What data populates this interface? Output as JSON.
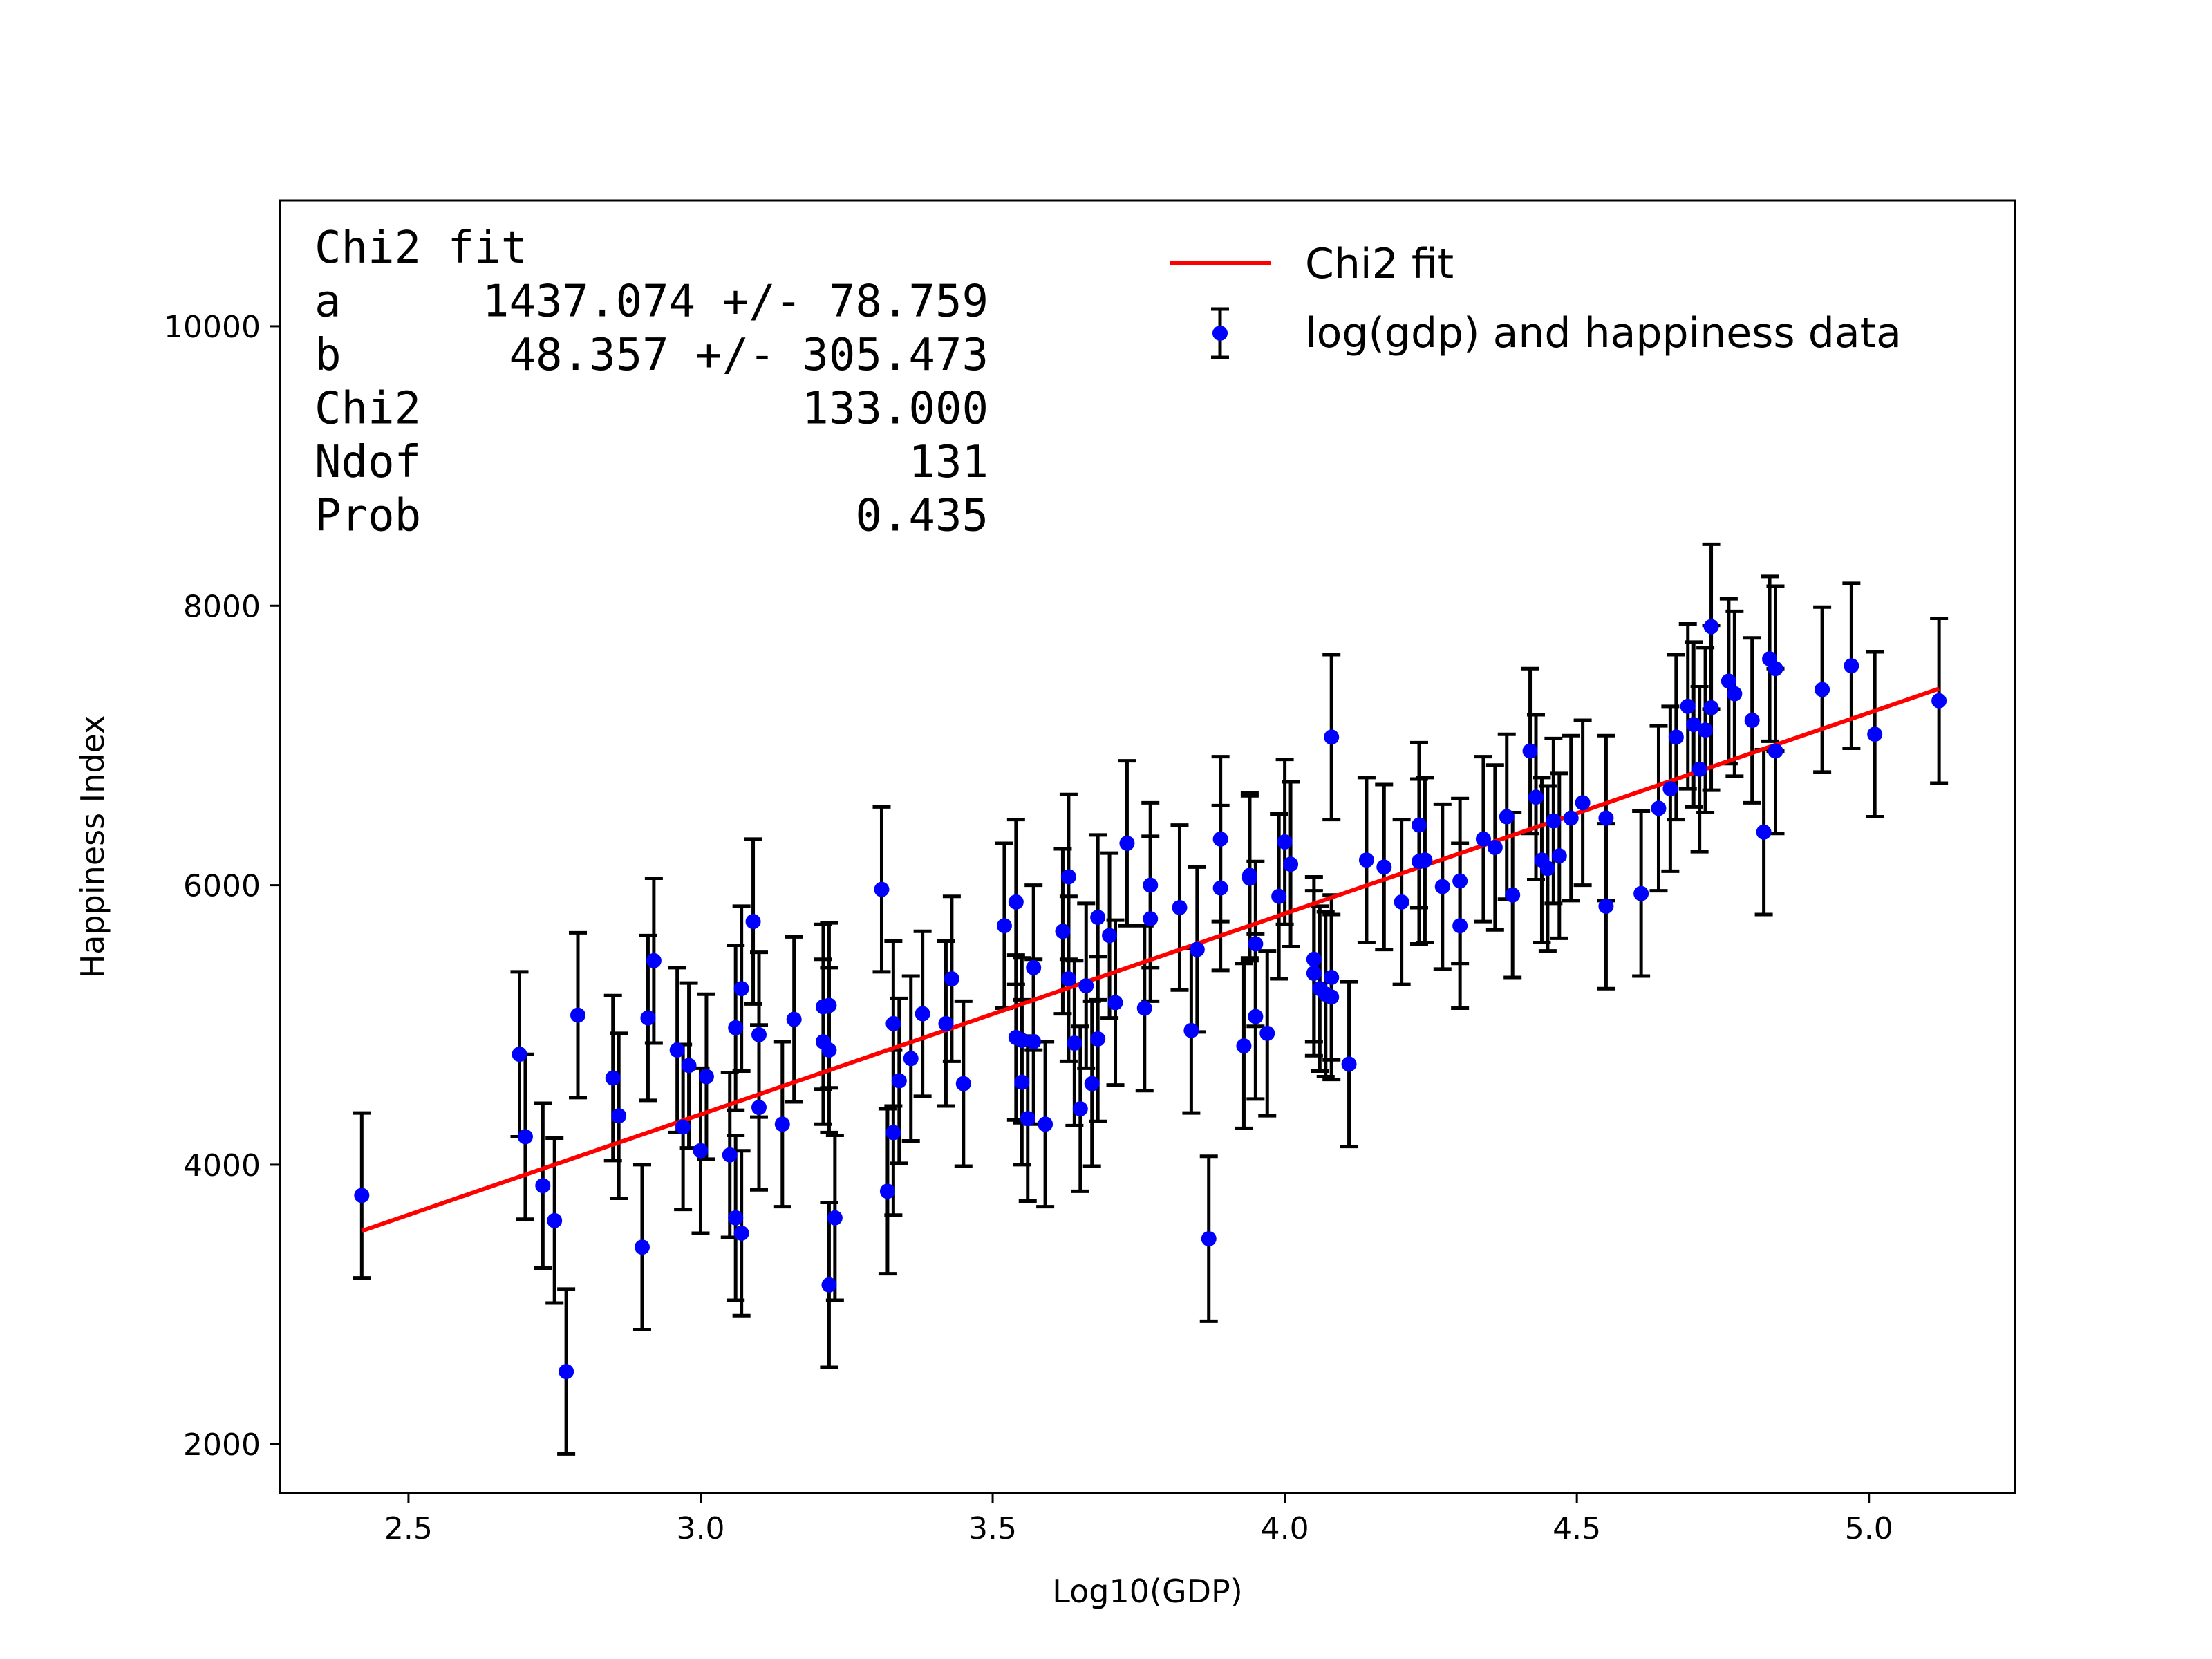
{
  "chart_data": {
    "type": "scatter",
    "title": "",
    "xlabel": "Log10(GDP)",
    "ylabel": "Happiness Index",
    "xlim": [
      2.28,
      5.25
    ],
    "ylim": [
      1650,
      10900
    ],
    "xticks": [
      2.5,
      3.0,
      3.5,
      4.0,
      4.5,
      5.0
    ],
    "xtick_labels": [
      "2.5",
      "3.0",
      "3.5",
      "4.0",
      "4.5",
      "5.0"
    ],
    "yticks": [
      2000,
      4000,
      6000,
      8000,
      10000
    ],
    "ytick_labels": [
      "2000",
      "4000",
      "6000",
      "8000",
      "10000"
    ],
    "grid": false,
    "legend_position": "top-right",
    "legend": [
      {
        "label": "Chi2 fit",
        "kind": "line",
        "color": "#ff0000"
      },
      {
        "label": "log(gdp) and happiness data",
        "kind": "errorbar-point",
        "color": "#0000ff"
      }
    ],
    "fit_box": [
      [
        "Chi2 fit",
        ""
      ],
      [
        "a",
        "1437.074 +/- 78.759"
      ],
      [
        "b",
        "48.357 +/- 305.473"
      ],
      [
        "Chi2",
        "133.000"
      ],
      [
        "Ndof",
        "131"
      ],
      [
        "Prob",
        "0.435"
      ]
    ],
    "fit_line": {
      "a": 1437.074,
      "b": 48.357,
      "x_range": [
        2.42,
        5.12
      ],
      "color": "#ff0000"
    },
    "yerr": 590,
    "series": [
      {
        "name": "log(gdp) and happiness data",
        "color": "#0000ff",
        "points": [
          [
            2.42,
            3780
          ],
          [
            2.69,
            4790
          ],
          [
            2.7,
            4200
          ],
          [
            2.73,
            3850
          ],
          [
            2.75,
            3600
          ],
          [
            2.77,
            2520
          ],
          [
            2.79,
            5070
          ],
          [
            2.85,
            4620
          ],
          [
            2.86,
            4350
          ],
          [
            2.9,
            3410
          ],
          [
            2.91,
            5050
          ],
          [
            2.92,
            5460
          ],
          [
            2.96,
            4820
          ],
          [
            2.97,
            4270
          ],
          [
            2.98,
            4710
          ],
          [
            3.0,
            4100
          ],
          [
            3.01,
            4630
          ],
          [
            3.05,
            4070
          ],
          [
            3.06,
            3620
          ],
          [
            3.06,
            4980
          ],
          [
            3.07,
            5260
          ],
          [
            3.07,
            3510
          ],
          [
            3.09,
            5740
          ],
          [
            3.1,
            4410
          ],
          [
            3.1,
            4930
          ],
          [
            3.14,
            4290
          ],
          [
            3.16,
            5040
          ],
          [
            3.21,
            5130
          ],
          [
            3.21,
            4880
          ],
          [
            3.22,
            4820
          ],
          [
            3.22,
            5140
          ],
          [
            3.22,
            3140
          ],
          [
            3.23,
            3620
          ],
          [
            3.31,
            5970
          ],
          [
            3.32,
            3810
          ],
          [
            3.33,
            5010
          ],
          [
            3.33,
            4230
          ],
          [
            3.34,
            4600
          ],
          [
            3.36,
            4760
          ],
          [
            3.38,
            5080
          ],
          [
            3.42,
            5010
          ],
          [
            3.43,
            5330
          ],
          [
            3.45,
            4580
          ],
          [
            3.52,
            5710
          ],
          [
            3.54,
            4910
          ],
          [
            3.54,
            5880
          ],
          [
            3.55,
            4590
          ],
          [
            3.55,
            4890
          ],
          [
            3.56,
            4330
          ],
          [
            3.57,
            4880
          ],
          [
            3.57,
            5410
          ],
          [
            3.59,
            4290
          ],
          [
            3.62,
            5670
          ],
          [
            3.63,
            6060
          ],
          [
            3.63,
            5330
          ],
          [
            3.64,
            4870
          ],
          [
            3.65,
            4400
          ],
          [
            3.66,
            5280
          ],
          [
            3.67,
            4580
          ],
          [
            3.68,
            5770
          ],
          [
            3.68,
            4900
          ],
          [
            3.7,
            5640
          ],
          [
            3.71,
            5160
          ],
          [
            3.73,
            6300
          ],
          [
            3.76,
            5120
          ],
          [
            3.77,
            5760
          ],
          [
            3.77,
            6000
          ],
          [
            3.82,
            5840
          ],
          [
            3.84,
            4960
          ],
          [
            3.85,
            5540
          ],
          [
            3.87,
            3470
          ],
          [
            3.89,
            6330
          ],
          [
            3.89,
            5980
          ],
          [
            3.93,
            4850
          ],
          [
            3.94,
            6050
          ],
          [
            3.94,
            6070
          ],
          [
            3.95,
            5580
          ],
          [
            3.95,
            5060
          ],
          [
            3.97,
            4940
          ],
          [
            3.99,
            5920
          ],
          [
            4.0,
            6310
          ],
          [
            4.01,
            6150
          ],
          [
            4.05,
            5370
          ],
          [
            4.05,
            5470
          ],
          [
            4.06,
            5260
          ],
          [
            4.07,
            5220
          ],
          [
            4.08,
            7060
          ],
          [
            4.08,
            5340
          ],
          [
            4.08,
            5200
          ],
          [
            4.11,
            4720
          ],
          [
            4.14,
            6180
          ],
          [
            4.17,
            6130
          ],
          [
            4.2,
            5880
          ],
          [
            4.23,
            6170
          ],
          [
            4.23,
            6430
          ],
          [
            4.24,
            6180
          ],
          [
            4.27,
            5990
          ],
          [
            4.3,
            6030
          ],
          [
            4.3,
            5710
          ],
          [
            4.34,
            6330
          ],
          [
            4.36,
            6270
          ],
          [
            4.38,
            6490
          ],
          [
            4.39,
            5930
          ],
          [
            4.42,
            6960
          ],
          [
            4.43,
            6630
          ],
          [
            4.44,
            6180
          ],
          [
            4.45,
            6120
          ],
          [
            4.46,
            6460
          ],
          [
            4.47,
            6210
          ],
          [
            4.49,
            6480
          ],
          [
            4.51,
            6590
          ],
          [
            4.55,
            5850
          ],
          [
            4.55,
            6480
          ],
          [
            4.61,
            5940
          ],
          [
            4.64,
            6550
          ],
          [
            4.66,
            6690
          ],
          [
            4.67,
            7060
          ],
          [
            4.69,
            7280
          ],
          [
            4.7,
            7150
          ],
          [
            4.71,
            6830
          ],
          [
            4.72,
            7110
          ],
          [
            4.73,
            7850
          ],
          [
            4.73,
            7270
          ],
          [
            4.76,
            7460
          ],
          [
            4.77,
            7370
          ],
          [
            4.8,
            7180
          ],
          [
            4.82,
            6380
          ],
          [
            4.83,
            7620
          ],
          [
            4.84,
            7550
          ],
          [
            4.84,
            6960
          ],
          [
            4.92,
            7400
          ],
          [
            4.97,
            7570
          ],
          [
            5.01,
            7080
          ],
          [
            5.12,
            7320
          ]
        ]
      }
    ]
  }
}
